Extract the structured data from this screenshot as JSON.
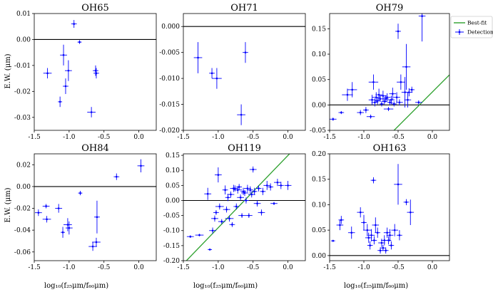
{
  "figure": {
    "ylabel": "E.W. (μm)",
    "xlabel": "log₁₀(f₂₅μm/f₆₀μm)",
    "legend": {
      "fit_label": "Best-fit",
      "det_label": "Detections",
      "placement": "top-right outside"
    },
    "colors": {
      "points": "#0000ff",
      "fit": "#2ca02c",
      "zero": "#000000",
      "frame": "#000000"
    }
  },
  "chart_data": [
    {
      "type": "scatter",
      "title": "OH65",
      "xlim": [
        -1.5,
        0.25
      ],
      "ylim": [
        -0.035,
        0.01
      ],
      "xticks": [
        "-1.5",
        "-1.0",
        "-0.5",
        "0.0"
      ],
      "xtick_values": [
        -1.5,
        -1.0,
        -0.5,
        0.0
      ],
      "yticks": [
        "0.01",
        "0.00",
        "-0.01",
        "-0.02",
        "-0.03"
      ],
      "ytick_values": [
        0.01,
        0.0,
        -0.01,
        -0.02,
        -0.03
      ],
      "fit": null,
      "points": [
        {
          "x": -1.31,
          "y": -0.013,
          "xerr": 0.06,
          "yerr": 0.002
        },
        {
          "x": -1.13,
          "y": -0.024,
          "xerr": 0.03,
          "yerr": 0.002
        },
        {
          "x": -1.08,
          "y": -0.006,
          "xerr": 0.05,
          "yerr": 0.004
        },
        {
          "x": -1.05,
          "y": -0.018,
          "xerr": 0.04,
          "yerr": 0.003
        },
        {
          "x": -1.01,
          "y": -0.012,
          "xerr": 0.05,
          "yerr": 0.004
        },
        {
          "x": -0.93,
          "y": 0.006,
          "xerr": 0.04,
          "yerr": 0.0015
        },
        {
          "x": -0.85,
          "y": -0.001,
          "xerr": 0.03,
          "yerr": 0.0007
        },
        {
          "x": -0.68,
          "y": -0.028,
          "xerr": 0.06,
          "yerr": 0.002
        },
        {
          "x": -0.62,
          "y": -0.012,
          "xerr": 0.04,
          "yerr": 0.002
        },
        {
          "x": -0.61,
          "y": -0.013,
          "xerr": 0.04,
          "yerr": 0.002
        }
      ]
    },
    {
      "type": "scatter",
      "title": "OH71",
      "xlim": [
        -1.5,
        0.25
      ],
      "ylim": [
        -0.02,
        0.0025
      ],
      "xticks": [
        "-1.5",
        "-1.0",
        "-0.5",
        "0.0"
      ],
      "xtick_values": [
        -1.5,
        -1.0,
        -0.5,
        0.0
      ],
      "yticks": [
        "0.000",
        "-0.005",
        "-0.010",
        "-0.015",
        "-0.020"
      ],
      "ytick_values": [
        0.0,
        -0.005,
        -0.01,
        -0.015,
        -0.02
      ],
      "fit": null,
      "points": [
        {
          "x": -1.29,
          "y": -0.006,
          "xerr": 0.06,
          "yerr": 0.003
        },
        {
          "x": -1.09,
          "y": -0.009,
          "xerr": 0.04,
          "yerr": 0.001
        },
        {
          "x": -1.02,
          "y": -0.01,
          "xerr": 0.07,
          "yerr": 0.002
        },
        {
          "x": -0.67,
          "y": -0.017,
          "xerr": 0.06,
          "yerr": 0.002
        },
        {
          "x": -0.61,
          "y": -0.005,
          "xerr": 0.04,
          "yerr": 0.002
        }
      ]
    },
    {
      "type": "scatter",
      "title": "OH79",
      "xlim": [
        -1.5,
        0.25
      ],
      "ylim": [
        -0.05,
        0.18
      ],
      "xticks": [
        "-1.5",
        "-1.0",
        "-0.5",
        "0.0"
      ],
      "xtick_values": [
        -1.5,
        -1.0,
        -0.5,
        0.0
      ],
      "yticks": [
        "0.15",
        "0.10",
        "0.05",
        "0.00",
        "-0.05"
      ],
      "ytick_values": [
        0.15,
        0.1,
        0.05,
        0.0,
        -0.05
      ],
      "fit": {
        "slope": 0.135,
        "intercept": 0.0255
      },
      "points": [
        {
          "x": -1.45,
          "y": -0.028,
          "xerr": 0.05,
          "yerr": 0.003
        },
        {
          "x": -1.33,
          "y": -0.015,
          "xerr": 0.04,
          "yerr": 0.003
        },
        {
          "x": -1.24,
          "y": 0.02,
          "xerr": 0.08,
          "yerr": 0.012
        },
        {
          "x": -1.17,
          "y": 0.03,
          "xerr": 0.07,
          "yerr": 0.015
        },
        {
          "x": -1.05,
          "y": -0.015,
          "xerr": 0.05,
          "yerr": 0.005
        },
        {
          "x": -0.97,
          "y": -0.01,
          "xerr": 0.04,
          "yerr": 0.006
        },
        {
          "x": -0.9,
          "y": -0.023,
          "xerr": 0.06,
          "yerr": 0.004
        },
        {
          "x": -0.88,
          "y": 0.01,
          "xerr": 0.05,
          "yerr": 0.01
        },
        {
          "x": -0.86,
          "y": 0.045,
          "xerr": 0.07,
          "yerr": 0.015
        },
        {
          "x": -0.84,
          "y": 0.005,
          "xerr": 0.05,
          "yerr": 0.008
        },
        {
          "x": -0.82,
          "y": 0.015,
          "xerr": 0.06,
          "yerr": 0.01
        },
        {
          "x": -0.8,
          "y": 0.008,
          "xerr": 0.04,
          "yerr": 0.007
        },
        {
          "x": -0.78,
          "y": 0.02,
          "xerr": 0.05,
          "yerr": 0.012
        },
        {
          "x": -0.76,
          "y": 0.012,
          "xerr": 0.04,
          "yerr": 0.006
        },
        {
          "x": -0.74,
          "y": 0.002,
          "xerr": 0.03,
          "yerr": 0.005
        },
        {
          "x": -0.72,
          "y": 0.018,
          "xerr": 0.05,
          "yerr": 0.01
        },
        {
          "x": -0.7,
          "y": 0.007,
          "xerr": 0.04,
          "yerr": 0.006
        },
        {
          "x": -0.68,
          "y": 0.012,
          "xerr": 0.04,
          "yerr": 0.007
        },
        {
          "x": -0.66,
          "y": 0.015,
          "xerr": 0.05,
          "yerr": 0.008
        },
        {
          "x": -0.64,
          "y": -0.008,
          "xerr": 0.07,
          "yerr": 0.004
        },
        {
          "x": -0.62,
          "y": 0.005,
          "xerr": 0.04,
          "yerr": 0.006
        },
        {
          "x": -0.6,
          "y": 0.01,
          "xerr": 0.05,
          "yerr": 0.008
        },
        {
          "x": -0.58,
          "y": 0.022,
          "xerr": 0.05,
          "yerr": 0.012
        },
        {
          "x": -0.56,
          "y": 0.002,
          "xerr": 0.04,
          "yerr": 0.005
        },
        {
          "x": -0.52,
          "y": 0.015,
          "xerr": 0.05,
          "yerr": 0.01
        },
        {
          "x": -0.5,
          "y": 0.145,
          "xerr": 0.04,
          "yerr": 0.015
        },
        {
          "x": -0.48,
          "y": 0.005,
          "xerr": 0.05,
          "yerr": 0.006
        },
        {
          "x": -0.46,
          "y": 0.045,
          "xerr": 0.06,
          "yerr": 0.015
        },
        {
          "x": -0.4,
          "y": 0.025,
          "xerr": 0.05,
          "yerr": 0.03
        },
        {
          "x": -0.38,
          "y": 0.075,
          "xerr": 0.06,
          "yerr": 0.045
        },
        {
          "x": -0.36,
          "y": 0.01,
          "xerr": 0.05,
          "yerr": 0.015
        },
        {
          "x": -0.34,
          "y": 0.025,
          "xerr": 0.05,
          "yerr": 0.008
        },
        {
          "x": -0.3,
          "y": 0.03,
          "xerr": 0.04,
          "yerr": 0.006
        },
        {
          "x": -0.2,
          "y": 0.005,
          "xerr": 0.05,
          "yerr": 0.004
        },
        {
          "x": -0.15,
          "y": 0.175,
          "xerr": 0.05,
          "yerr": 0.05
        }
      ]
    },
    {
      "type": "scatter",
      "title": "OH84",
      "xlim": [
        -1.5,
        0.25
      ],
      "ylim": [
        -0.068,
        0.03
      ],
      "xticks": [
        "-1.5",
        "-1.0",
        "-0.5",
        "0.0"
      ],
      "xtick_values": [
        -1.5,
        -1.0,
        -0.5,
        0.0
      ],
      "yticks": [
        "0.02",
        "0.00",
        "-0.02",
        "-0.04",
        "-0.06"
      ],
      "ytick_values": [
        0.02,
        0.0,
        -0.02,
        -0.04,
        -0.06
      ],
      "fit": null,
      "points": [
        {
          "x": -1.44,
          "y": -0.024,
          "xerr": 0.05,
          "yerr": 0.003
        },
        {
          "x": -1.33,
          "y": -0.018,
          "xerr": 0.05,
          "yerr": 0.002
        },
        {
          "x": -1.32,
          "y": -0.03,
          "xerr": 0.06,
          "yerr": 0.003
        },
        {
          "x": -1.15,
          "y": -0.02,
          "xerr": 0.05,
          "yerr": 0.004
        },
        {
          "x": -1.09,
          "y": -0.042,
          "xerr": 0.03,
          "yerr": 0.005
        },
        {
          "x": -1.02,
          "y": -0.035,
          "xerr": 0.06,
          "yerr": 0.006
        },
        {
          "x": -1.0,
          "y": -0.038,
          "xerr": 0.05,
          "yerr": 0.006
        },
        {
          "x": -0.84,
          "y": -0.006,
          "xerr": 0.03,
          "yerr": 0.002
        },
        {
          "x": -0.66,
          "y": -0.055,
          "xerr": 0.06,
          "yerr": 0.004
        },
        {
          "x": -0.61,
          "y": -0.051,
          "xerr": 0.06,
          "yerr": 0.004
        },
        {
          "x": -0.6,
          "y": -0.028,
          "xerr": 0.04,
          "yerr": 0.015
        },
        {
          "x": -0.32,
          "y": 0.009,
          "xerr": 0.04,
          "yerr": 0.003
        },
        {
          "x": 0.03,
          "y": 0.019,
          "xerr": 0.05,
          "yerr": 0.006
        }
      ]
    },
    {
      "type": "scatter",
      "title": "OH119",
      "xlim": [
        -1.5,
        0.25
      ],
      "ylim": [
        -0.2,
        0.155
      ],
      "xticks": [
        "-1.5",
        "-1.0",
        "-0.5",
        "0.0"
      ],
      "xtick_values": [
        -1.5,
        -1.0,
        -0.5,
        0.0
      ],
      "yticks": [
        "0.15",
        "0.10",
        "0.05",
        "0.00",
        "-0.05",
        "-0.10",
        "-0.15",
        "-0.20"
      ],
      "ytick_values": [
        0.15,
        0.1,
        0.05,
        0.0,
        -0.05,
        -0.1,
        -0.15,
        -0.2
      ],
      "fit": {
        "slope": 0.24,
        "intercept": 0.1495
      },
      "points": [
        {
          "x": -1.4,
          "y": -0.12,
          "xerr": 0.05,
          "yerr": 0.004
        },
        {
          "x": -1.27,
          "y": -0.115,
          "xerr": 0.06,
          "yerr": 0.004
        },
        {
          "x": -1.15,
          "y": 0.022,
          "xerr": 0.05,
          "yerr": 0.02
        },
        {
          "x": -1.12,
          "y": -0.163,
          "xerr": 0.03,
          "yerr": 0.003
        },
        {
          "x": -1.08,
          "y": -0.1,
          "xerr": 0.05,
          "yerr": 0.01
        },
        {
          "x": -1.05,
          "y": -0.06,
          "xerr": 0.05,
          "yerr": 0.01
        },
        {
          "x": -1.03,
          "y": -0.04,
          "xerr": 0.04,
          "yerr": 0.008
        },
        {
          "x": -1.0,
          "y": 0.085,
          "xerr": 0.05,
          "yerr": 0.025
        },
        {
          "x": -0.98,
          "y": -0.02,
          "xerr": 0.06,
          "yerr": 0.01
        },
        {
          "x": -0.95,
          "y": -0.07,
          "xerr": 0.05,
          "yerr": 0.008
        },
        {
          "x": -0.9,
          "y": 0.035,
          "xerr": 0.04,
          "yerr": 0.015
        },
        {
          "x": -0.88,
          "y": -0.03,
          "xerr": 0.05,
          "yerr": 0.01
        },
        {
          "x": -0.86,
          "y": 0.01,
          "xerr": 0.04,
          "yerr": 0.012
        },
        {
          "x": -0.84,
          "y": -0.06,
          "xerr": 0.06,
          "yerr": 0.01
        },
        {
          "x": -0.82,
          "y": 0.02,
          "xerr": 0.05,
          "yerr": 0.01
        },
        {
          "x": -0.8,
          "y": -0.08,
          "xerr": 0.04,
          "yerr": 0.008
        },
        {
          "x": -0.78,
          "y": 0.04,
          "xerr": 0.05,
          "yerr": 0.012
        },
        {
          "x": -0.76,
          "y": 0.04,
          "xerr": 0.04,
          "yerr": 0.01
        },
        {
          "x": -0.74,
          "y": -0.02,
          "xerr": 0.04,
          "yerr": 0.01
        },
        {
          "x": -0.72,
          "y": 0.035,
          "xerr": 0.06,
          "yerr": 0.012
        },
        {
          "x": -0.7,
          "y": 0.045,
          "xerr": 0.04,
          "yerr": 0.01
        },
        {
          "x": -0.68,
          "y": 0.01,
          "xerr": 0.05,
          "yerr": 0.01
        },
        {
          "x": -0.66,
          "y": -0.05,
          "xerr": 0.05,
          "yerr": 0.008
        },
        {
          "x": -0.64,
          "y": 0.03,
          "xerr": 0.04,
          "yerr": 0.012
        },
        {
          "x": -0.62,
          "y": 0.025,
          "xerr": 0.05,
          "yerr": 0.01
        },
        {
          "x": -0.6,
          "y": 0.0,
          "xerr": 0.04,
          "yerr": 0.01
        },
        {
          "x": -0.58,
          "y": 0.04,
          "xerr": 0.05,
          "yerr": 0.012
        },
        {
          "x": -0.56,
          "y": -0.05,
          "xerr": 0.05,
          "yerr": 0.008
        },
        {
          "x": -0.54,
          "y": 0.035,
          "xerr": 0.04,
          "yerr": 0.012
        },
        {
          "x": -0.52,
          "y": 0.02,
          "xerr": 0.05,
          "yerr": 0.01
        },
        {
          "x": -0.5,
          "y": 0.103,
          "xerr": 0.05,
          "yerr": 0.01
        },
        {
          "x": -0.48,
          "y": 0.03,
          "xerr": 0.04,
          "yerr": 0.012
        },
        {
          "x": -0.44,
          "y": -0.01,
          "xerr": 0.05,
          "yerr": 0.01
        },
        {
          "x": -0.42,
          "y": 0.04,
          "xerr": 0.04,
          "yerr": 0.01
        },
        {
          "x": -0.38,
          "y": -0.04,
          "xerr": 0.05,
          "yerr": 0.01
        },
        {
          "x": -0.36,
          "y": 0.03,
          "xerr": 0.04,
          "yerr": 0.012
        },
        {
          "x": -0.3,
          "y": 0.05,
          "xerr": 0.05,
          "yerr": 0.015
        },
        {
          "x": -0.25,
          "y": 0.045,
          "xerr": 0.04,
          "yerr": 0.012
        },
        {
          "x": -0.2,
          "y": -0.01,
          "xerr": 0.05,
          "yerr": 0.005
        },
        {
          "x": -0.15,
          "y": 0.06,
          "xerr": 0.05,
          "yerr": 0.012
        },
        {
          "x": -0.1,
          "y": 0.05,
          "xerr": 0.04,
          "yerr": 0.012
        },
        {
          "x": 0.0,
          "y": 0.05,
          "xerr": 0.05,
          "yerr": 0.015
        }
      ]
    },
    {
      "type": "scatter",
      "title": "OH163",
      "xlim": [
        -1.5,
        0.25
      ],
      "ylim": [
        -0.01,
        0.2
      ],
      "xticks": [
        "-1.5",
        "-1.0",
        "-0.5",
        "0.0"
      ],
      "xtick_values": [
        -1.5,
        -1.0,
        -0.5,
        0.0
      ],
      "yticks": [
        "0.20",
        "0.15",
        "0.10",
        "0.05",
        "0.00"
      ],
      "ytick_values": [
        0.2,
        0.15,
        0.1,
        0.05,
        0.0
      ],
      "fit": null,
      "points": [
        {
          "x": -1.45,
          "y": 0.029,
          "xerr": 0.03,
          "yerr": 0.002
        },
        {
          "x": -1.35,
          "y": 0.06,
          "xerr": 0.05,
          "yerr": 0.01
        },
        {
          "x": -1.33,
          "y": 0.07,
          "xerr": 0.04,
          "yerr": 0.008
        },
        {
          "x": -1.18,
          "y": 0.045,
          "xerr": 0.05,
          "yerr": 0.012
        },
        {
          "x": -1.05,
          "y": 0.085,
          "xerr": 0.05,
          "yerr": 0.01
        },
        {
          "x": -1.0,
          "y": 0.065,
          "xerr": 0.04,
          "yerr": 0.015
        },
        {
          "x": -0.95,
          "y": 0.05,
          "xerr": 0.06,
          "yerr": 0.012
        },
        {
          "x": -0.93,
          "y": 0.035,
          "xerr": 0.05,
          "yerr": 0.01
        },
        {
          "x": -0.91,
          "y": 0.02,
          "xerr": 0.04,
          "yerr": 0.008
        },
        {
          "x": -0.89,
          "y": 0.04,
          "xerr": 0.05,
          "yerr": 0.012
        },
        {
          "x": -0.86,
          "y": 0.148,
          "xerr": 0.04,
          "yerr": 0.006
        },
        {
          "x": -0.85,
          "y": 0.03,
          "xerr": 0.04,
          "yerr": 0.008
        },
        {
          "x": -0.83,
          "y": 0.06,
          "xerr": 0.05,
          "yerr": 0.015
        },
        {
          "x": -0.8,
          "y": 0.045,
          "xerr": 0.04,
          "yerr": 0.01
        },
        {
          "x": -0.76,
          "y": 0.01,
          "xerr": 0.04,
          "yerr": 0.006
        },
        {
          "x": -0.74,
          "y": 0.025,
          "xerr": 0.05,
          "yerr": 0.008
        },
        {
          "x": -0.72,
          "y": 0.015,
          "xerr": 0.04,
          "yerr": 0.006
        },
        {
          "x": -0.7,
          "y": 0.03,
          "xerr": 0.05,
          "yerr": 0.01
        },
        {
          "x": -0.68,
          "y": 0.01,
          "xerr": 0.04,
          "yerr": 0.006
        },
        {
          "x": -0.66,
          "y": 0.045,
          "xerr": 0.05,
          "yerr": 0.01
        },
        {
          "x": -0.64,
          "y": 0.03,
          "xerr": 0.04,
          "yerr": 0.008
        },
        {
          "x": -0.62,
          "y": 0.04,
          "xerr": 0.05,
          "yerr": 0.012
        },
        {
          "x": -0.6,
          "y": 0.02,
          "xerr": 0.04,
          "yerr": 0.008
        },
        {
          "x": -0.55,
          "y": 0.05,
          "xerr": 0.05,
          "yerr": 0.012
        },
        {
          "x": -0.5,
          "y": 0.14,
          "xerr": 0.06,
          "yerr": 0.04
        },
        {
          "x": -0.48,
          "y": 0.04,
          "xerr": 0.04,
          "yerr": 0.01
        },
        {
          "x": -0.38,
          "y": 0.105,
          "xerr": 0.04,
          "yerr": 0.006
        },
        {
          "x": -0.32,
          "y": 0.085,
          "xerr": 0.05,
          "yerr": 0.025
        }
      ]
    }
  ]
}
